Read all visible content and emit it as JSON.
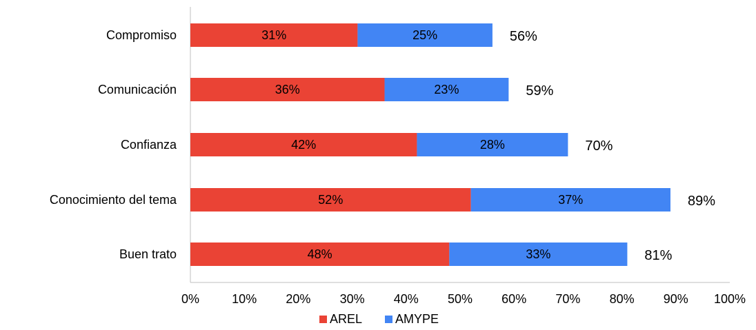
{
  "chart_data": {
    "type": "bar",
    "orientation": "horizontal",
    "stacked": true,
    "title": "",
    "categories": [
      "Compromiso",
      "Comunicación",
      "Confianza",
      "Conocimiento del tema",
      "Buen trato"
    ],
    "series": [
      {
        "name": "AREL",
        "color": "#EA4335",
        "values": [
          31,
          36,
          42,
          52,
          48
        ],
        "labels": [
          "31%",
          "36%",
          "42%",
          "52%",
          "48%"
        ]
      },
      {
        "name": "AMYPE",
        "color": "#4285F4",
        "values": [
          25,
          23,
          28,
          37,
          33
        ],
        "labels": [
          "25%",
          "23%",
          "28%",
          "37%",
          "33%"
        ]
      }
    ],
    "totals": [
      "56%",
      "59%",
      "70%",
      "89%",
      "81%"
    ],
    "xlim": [
      0,
      100
    ],
    "x_ticks": [
      "0%",
      "10%",
      "20%",
      "30%",
      "40%",
      "50%",
      "60%",
      "70%",
      "80%",
      "90%",
      "100%"
    ],
    "grid": false,
    "legend_position": "bottom"
  }
}
